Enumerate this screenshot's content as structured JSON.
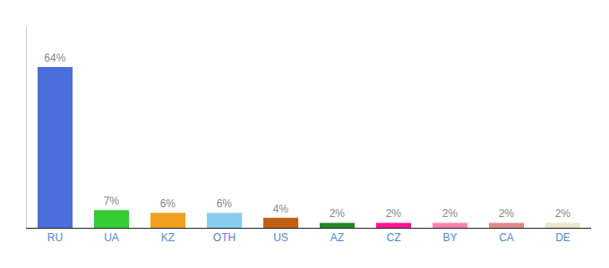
{
  "chart_data": {
    "type": "bar",
    "categories": [
      "RU",
      "UA",
      "KZ",
      "OTH",
      "US",
      "AZ",
      "CZ",
      "BY",
      "CA",
      "DE"
    ],
    "values": [
      64,
      7,
      6,
      6,
      4,
      2,
      2,
      2,
      2,
      2
    ],
    "value_labels": [
      "64%",
      "7%",
      "6%",
      "6%",
      "4%",
      "2%",
      "2%",
      "2%",
      "2%",
      "2%"
    ],
    "colors": [
      "#4a6fdc",
      "#33cc33",
      "#f0a020",
      "#88ccee",
      "#c06010",
      "#228822",
      "#ff1493",
      "#ff80b0",
      "#e08888",
      "#e8e8cc"
    ],
    "ylim": [
      0,
      80
    ],
    "tick_labels": "x",
    "grid": false,
    "data_labels": true
  }
}
